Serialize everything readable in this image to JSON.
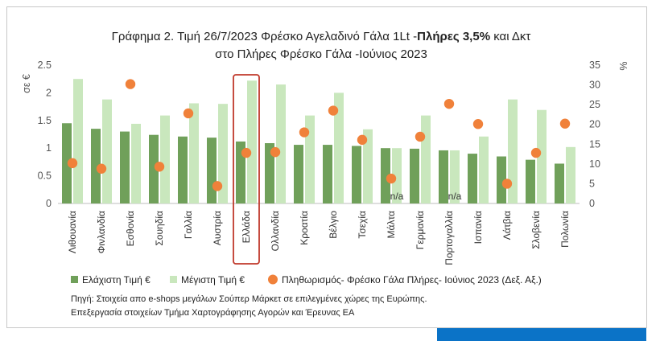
{
  "colors": {
    "min_bar": "#70a05a",
    "max_bar": "#c9e7bd",
    "inflation_dot": "#f0813a",
    "highlight": "#c0392b",
    "accent_band": "#0b73c7"
  },
  "chart_data": {
    "type": "bar",
    "title_line1_a": "Γράφημα 2. Τιμή 26/7/2023 Φρέσκο Αγελαδινό Γάλα 1Lt -",
    "title_line1_b": "Πλήρες 3,5%",
    "title_line1_c": " και Δκτ",
    "title_line2": "στο Πλήρες Φρέσκο Γάλα -Ιούνιος 2023",
    "ylabel_left": "σε €",
    "ylabel_right": "%",
    "ylim_left": [
      0,
      2.5
    ],
    "ylim_right": [
      0,
      35
    ],
    "yticks_left": [
      "0",
      "0.5",
      "1",
      "1.5",
      "2",
      "2.5"
    ],
    "yticks_right": [
      "0",
      "5",
      "10",
      "15",
      "20",
      "25",
      "30",
      "35"
    ],
    "categories": [
      "Λιθουανία",
      "Φινλανδία",
      "Εσθονία",
      "Σουηδία",
      "Γαλλία",
      "Αυστρία",
      "Ελλάδα",
      "Ολλανδία",
      "Κροατία",
      "Βέλγιο",
      "Τσεχία",
      "Μάλτα",
      "Γερμανία",
      "Πορτογαλλία",
      "Ισπανία",
      "Λάτβια",
      "Σλοβενία",
      "Πολωνία"
    ],
    "highlight_category": "Ελλάδα",
    "series": [
      {
        "name": "Ελάχιστη Τιμή €",
        "axis": "left",
        "values": [
          1.45,
          1.35,
          1.3,
          1.24,
          1.21,
          1.19,
          1.12,
          1.09,
          1.06,
          1.06,
          1.04,
          1.0,
          0.99,
          0.96,
          0.9,
          0.85,
          0.79,
          0.72
        ]
      },
      {
        "name": "Μέγιστη Τιμή €",
        "axis": "left",
        "values": [
          2.25,
          1.88,
          1.44,
          1.59,
          1.81,
          1.8,
          2.22,
          2.15,
          1.59,
          2.0,
          1.34,
          1.0,
          1.59,
          0.96,
          1.21,
          1.88,
          1.69,
          1.02
        ]
      },
      {
        "name": "Πληθωρισμός- Φρέσκο Γάλα Πλήρες- Ιούνιος 2023 (Δεξ. Αξ.)",
        "axis": "right",
        "type": "scatter",
        "values": [
          10.2,
          8.8,
          30.2,
          9.3,
          22.8,
          4.4,
          12.8,
          13.0,
          18.0,
          23.5,
          16.1,
          6.3,
          16.9,
          25.2,
          20.1,
          5.0,
          12.8,
          20.2
        ]
      }
    ],
    "annotations": [
      {
        "category": "Μάλτα",
        "text": "n/a"
      },
      {
        "category": "Πορτογαλλία",
        "text": "n/a"
      }
    ],
    "legend_position": "bottom"
  },
  "source_line1": "Πηγή: Στοιχεία απο e-shops μεγάλων Σούπερ Μάρκετ σε επιλεγμένες χώρες της Ευρώπης.",
  "source_line2": "Επεξεργασία στοιχείων Τμήμα Χαρτογράφησης Αγορών και Έρευνας ΕΑ"
}
